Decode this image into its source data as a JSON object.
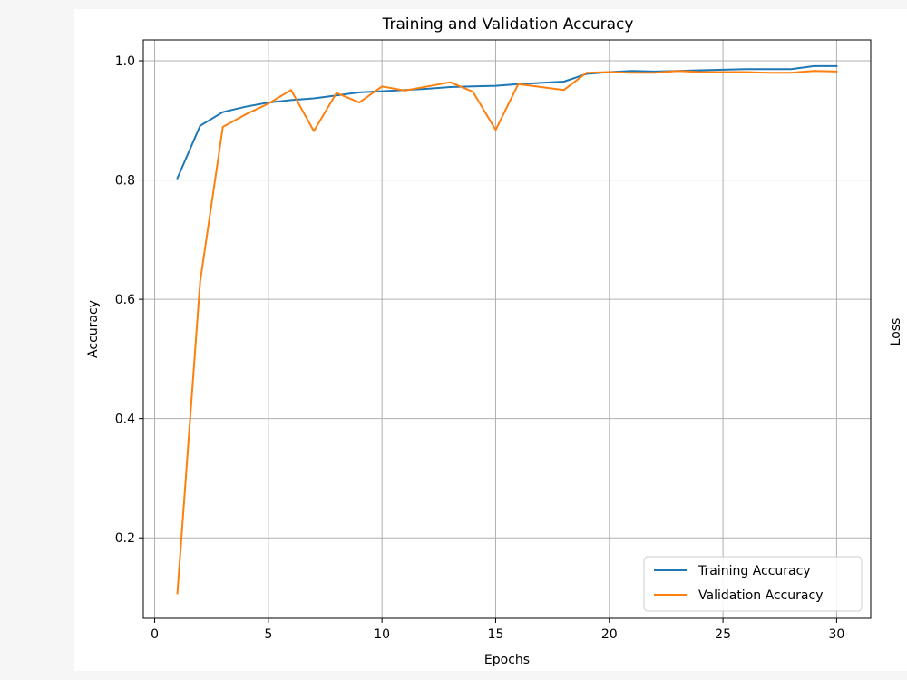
{
  "chart_data": {
    "type": "line",
    "title": "Training and Validation Accuracy",
    "xlabel": "Epochs",
    "ylabel": "Accuracy",
    "right_label": "Loss",
    "xlim": [
      -0.5,
      31.5
    ],
    "ylim": [
      0.065,
      1.035
    ],
    "xticks": [
      0,
      5,
      10,
      15,
      20,
      25,
      30
    ],
    "yticks": [
      0.2,
      0.4,
      0.6,
      0.8,
      1.0
    ],
    "ytick_labels": [
      "0.2",
      "0.4",
      "0.6",
      "0.8",
      "1.0"
    ],
    "grid": true,
    "legend_position": "lower-right",
    "x": [
      1,
      2,
      3,
      4,
      5,
      6,
      7,
      8,
      9,
      10,
      11,
      12,
      13,
      14,
      15,
      16,
      17,
      18,
      19,
      20,
      21,
      22,
      23,
      24,
      25,
      26,
      27,
      28,
      29,
      30
    ],
    "series": [
      {
        "name": "Training Accuracy",
        "color": "#1f77b4",
        "values": [
          0.803,
          0.891,
          0.914,
          0.923,
          0.93,
          0.934,
          0.937,
          0.942,
          0.947,
          0.949,
          0.951,
          0.953,
          0.956,
          0.957,
          0.958,
          0.961,
          0.963,
          0.965,
          0.978,
          0.981,
          0.983,
          0.982,
          0.983,
          0.984,
          0.985,
          0.986,
          0.986,
          0.986,
          0.991,
          0.991
        ]
      },
      {
        "name": "Validation Accuracy",
        "color": "#ff7f0e",
        "values": [
          0.107,
          0.63,
          0.889,
          0.91,
          0.928,
          0.951,
          0.882,
          0.946,
          0.93,
          0.957,
          0.95,
          0.957,
          0.964,
          0.948,
          0.884,
          0.961,
          0.956,
          0.951,
          0.98,
          0.981,
          0.98,
          0.98,
          0.983,
          0.981,
          0.981,
          0.981,
          0.98,
          0.98,
          0.983,
          0.982
        ]
      }
    ]
  }
}
